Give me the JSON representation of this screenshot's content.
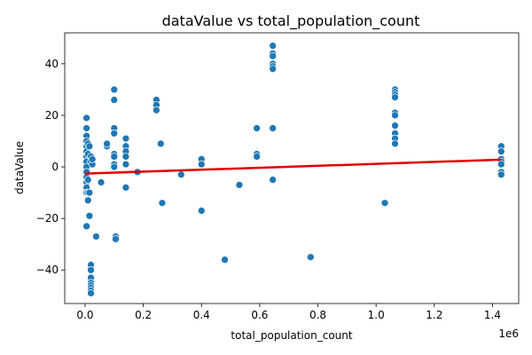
{
  "chart_data": {
    "type": "scatter",
    "title": "dataValue vs total_population_count",
    "xlabel": "total_population_count",
    "ylabel": "dataValue",
    "x_offset_label": "1e6",
    "x_scale": 1000000,
    "xlim": [
      -70000,
      1490000
    ],
    "ylim": [
      -53,
      52
    ],
    "x_ticks": [
      0,
      200000,
      400000,
      600000,
      800000,
      1000000,
      1200000,
      1400000
    ],
    "x_tick_labels": [
      "0.0",
      "0.2",
      "0.4",
      "0.6",
      "0.8",
      "1.0",
      "1.2",
      "1.4"
    ],
    "y_ticks": [
      -40,
      -20,
      0,
      20,
      40
    ],
    "y_tick_labels": [
      "−40",
      "−20",
      "0",
      "20",
      "40"
    ],
    "grid": false,
    "point_color": "#1f77b4",
    "regression_color": "#e00000",
    "regression_line": {
      "x": [
        0,
        1430000
      ],
      "y": [
        -2.6,
        2.8
      ]
    },
    "points": {
      "x": [
        5000,
        5000,
        5000,
        5000,
        5000,
        5000,
        5000,
        5000,
        5000,
        5000,
        5000,
        5000,
        5000,
        5000,
        5000,
        10000,
        10000,
        10000,
        10000,
        10000,
        15000,
        15000,
        15000,
        20000,
        20000,
        20000,
        20000,
        20000,
        20000,
        20000,
        20000,
        20000,
        20000,
        25000,
        25000,
        38000,
        55000,
        75000,
        75000,
        100000,
        100000,
        100000,
        100000,
        100000,
        100000,
        100000,
        100000,
        105000,
        105000,
        140000,
        140000,
        140000,
        140000,
        140000,
        140000,
        180000,
        245000,
        245000,
        245000,
        260000,
        265000,
        330000,
        400000,
        400000,
        400000,
        480000,
        530000,
        590000,
        590000,
        590000,
        645000,
        645000,
        645000,
        645000,
        645000,
        645000,
        645000,
        645000,
        775000,
        1030000,
        1065000,
        1065000,
        1065000,
        1065000,
        1065000,
        1065000,
        1065000,
        1065000,
        1065000,
        1065000,
        1430000,
        1430000,
        1430000,
        1430000,
        1430000,
        1430000,
        1430000
      ],
      "y": [
        19,
        15,
        12,
        10,
        8,
        6,
        4,
        2,
        0,
        -2,
        -4,
        -6,
        -8,
        -10,
        -23,
        9,
        5,
        -5,
        -13,
        -10,
        8,
        -19,
        -10,
        4,
        2,
        -38,
        -40,
        -43,
        -45,
        -46,
        -47,
        -48,
        -49,
        1,
        3,
        -27,
        -6,
        8,
        9,
        30,
        26,
        15,
        13,
        5,
        4,
        1,
        0,
        -27,
        -28,
        11,
        8,
        6,
        4,
        1,
        -8,
        -2,
        26,
        24,
        22,
        9,
        -14,
        -3,
        3,
        1,
        -17,
        -36,
        -7,
        15,
        5,
        4,
        47,
        44,
        43,
        40,
        39,
        38,
        15,
        -5,
        -35,
        -14,
        30,
        29,
        28,
        27,
        21,
        20,
        16,
        13,
        11,
        9,
        8,
        6,
        3,
        2,
        1,
        -2,
        -3
      ]
    }
  }
}
